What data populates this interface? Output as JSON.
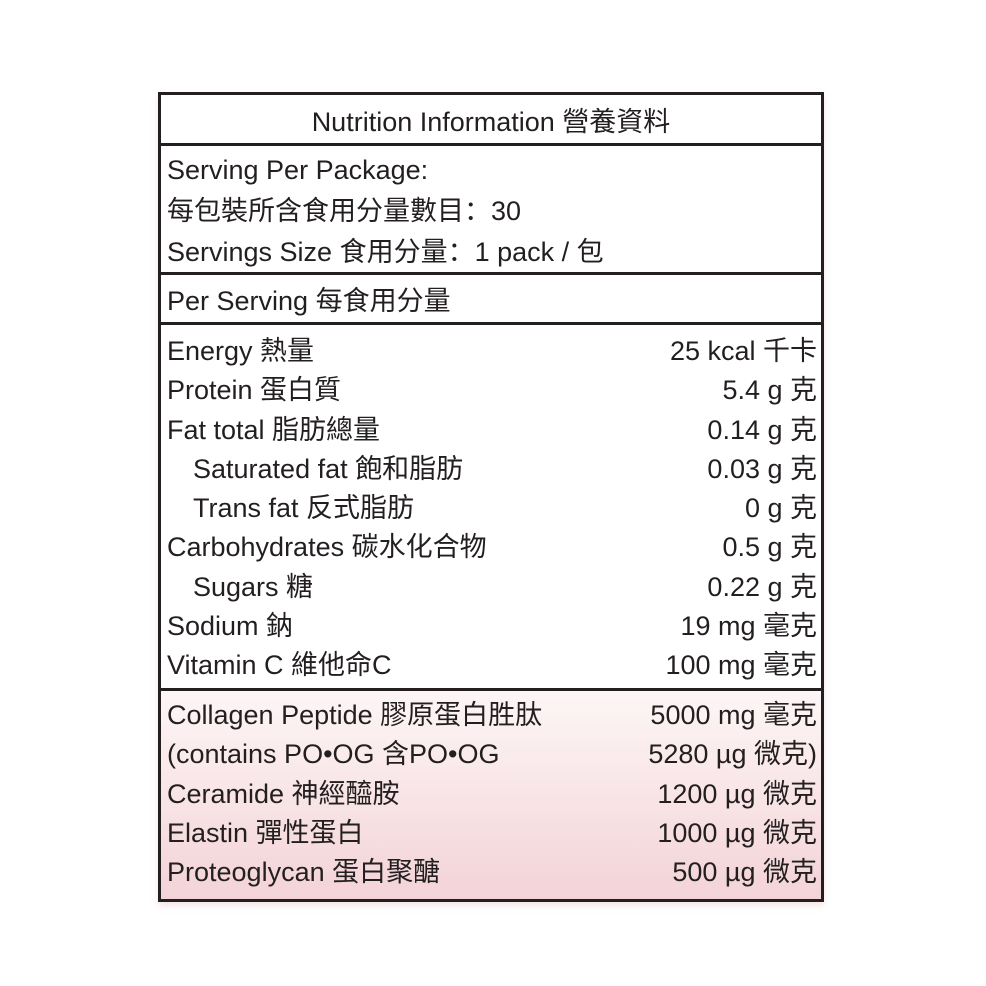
{
  "title": "Nutrition Information 營養資料",
  "serving": {
    "per_package_label": "Serving Per Package:",
    "per_package_zh": "每包裝所含食用分量數目：30",
    "size": "Servings Size 食用分量：1 pack / 包"
  },
  "per_serving": "Per Serving 每食用分量",
  "nutrients": [
    {
      "name": "Energy 熱量",
      "value": "25 kcal 千卡"
    },
    {
      "name": "Protein 蛋白質",
      "value": "5.4 g 克"
    },
    {
      "name": "Fat total 脂肪總量",
      "value": "0.14 g 克"
    },
    {
      "name": "Saturated fat 飽和脂肪",
      "value": "0.03 g 克"
    },
    {
      "name": "Trans fat 反式脂肪",
      "value": "0 g 克"
    },
    {
      "name": "Carbohydrates 碳水化合物",
      "value": "0.5 g 克"
    },
    {
      "name": "Sugars 糖",
      "value": "0.22 g 克"
    },
    {
      "name": "Sodium 鈉",
      "value": "19 mg 毫克"
    },
    {
      "name": "Vitamin C 維他命C",
      "value": "100 mg 毫克"
    }
  ],
  "extras": [
    {
      "name": "Collagen Peptide 膠原蛋白胜肽",
      "value": "5000 mg 毫克"
    },
    {
      "name": "(contains PO•OG 含PO•OG",
      "value": "5280 µg 微克)"
    },
    {
      "name": "Ceramide 神經醯胺",
      "value": "1200 µg 微克"
    },
    {
      "name": "Elastin 彈性蛋白",
      "value": "1000 µg 微克"
    },
    {
      "name": "Proteoglycan 蛋白聚醣",
      "value": "500 µg 微克"
    }
  ],
  "colors": {
    "border": "#231f20",
    "pink_gradient_end": "#f3d3d7"
  }
}
